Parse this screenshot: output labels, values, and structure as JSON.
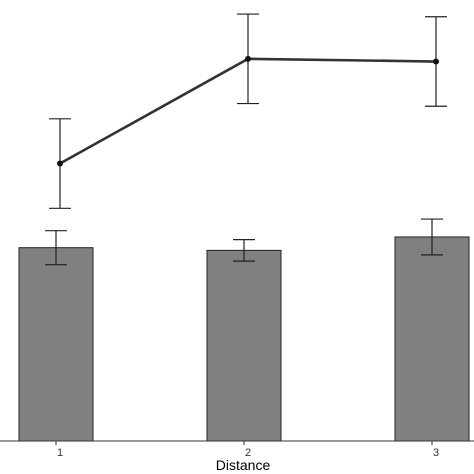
{
  "chart_data": {
    "type": "bar",
    "title": "",
    "xlabel": "Distance",
    "ylabel": "",
    "categories": [
      "1",
      "2",
      "3"
    ],
    "ylim": [
      0,
      5
    ],
    "grid": false,
    "series": [
      {
        "type": "bar",
        "values": [
          2.16,
          2.13,
          2.28
        ],
        "error": [
          0.19,
          0.12,
          0.2
        ],
        "color": "#808080"
      },
      {
        "type": "line",
        "values": [
          3.1,
          4.27,
          4.24
        ],
        "error": [
          0.5,
          0.5,
          0.5
        ],
        "color": "#333333"
      }
    ]
  }
}
